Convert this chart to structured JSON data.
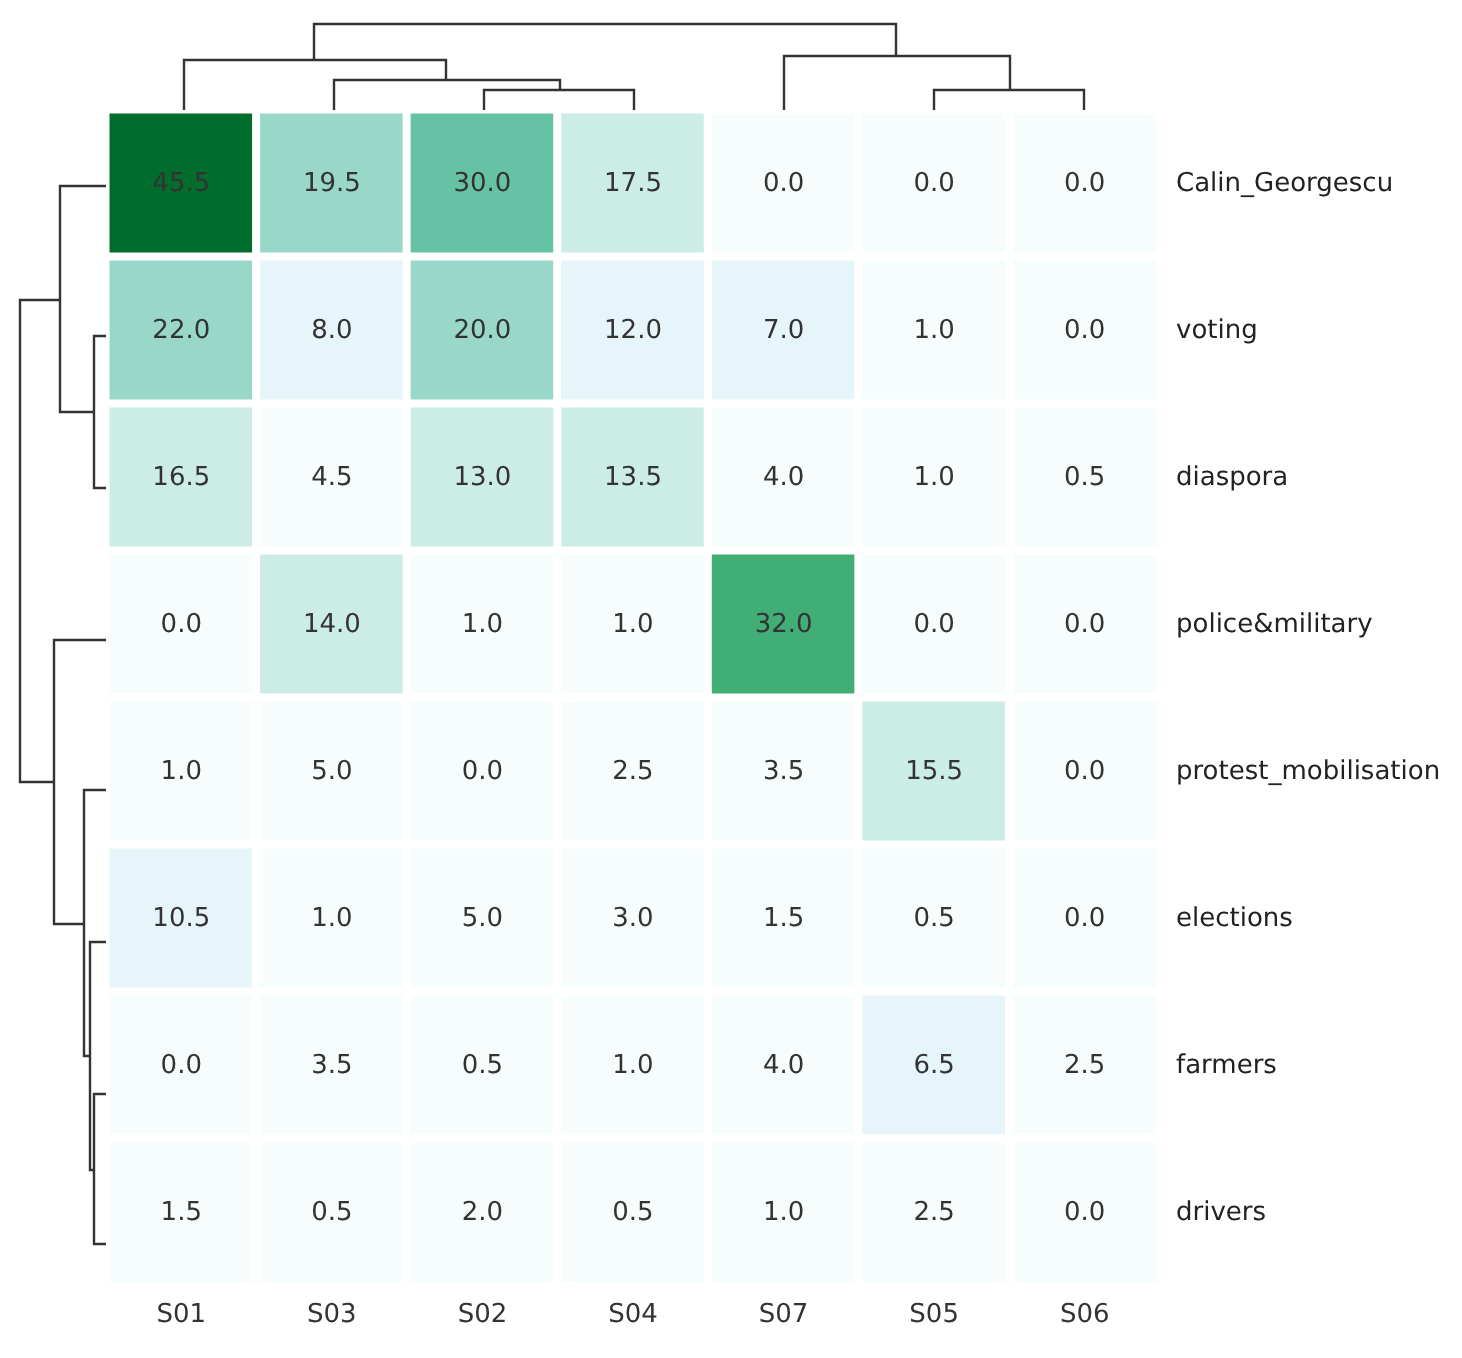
{
  "chart_data": {
    "type": "heatmap",
    "categories": [
      "S01",
      "S03",
      "S02",
      "S04",
      "S07",
      "S05",
      "S06"
    ],
    "y_categories": [
      "Calin_Georgescu",
      "voting",
      "diaspora",
      "police&military",
      "protest_mobilisation",
      "elections",
      "farmers",
      "drivers"
    ],
    "cells": [
      [
        45.5,
        19.5,
        30.0,
        17.5,
        0.0,
        0.0,
        0.0
      ],
      [
        22.0,
        8.0,
        20.0,
        12.0,
        7.0,
        1.0,
        0.0
      ],
      [
        16.5,
        4.5,
        13.0,
        13.5,
        4.0,
        1.0,
        0.5
      ],
      [
        0.0,
        14.0,
        1.0,
        1.0,
        32.0,
        0.0,
        0.0
      ],
      [
        1.0,
        5.0,
        0.0,
        2.5,
        3.5,
        15.5,
        0.0
      ],
      [
        10.5,
        1.0,
        5.0,
        3.0,
        1.5,
        0.5,
        0.0
      ],
      [
        0.0,
        3.5,
        0.5,
        1.0,
        4.0,
        6.5,
        2.5
      ],
      [
        1.5,
        0.5,
        2.0,
        0.5,
        1.0,
        2.5,
        0.0
      ]
    ],
    "cell_labels": [
      [
        "45.5",
        "19.5",
        "30.0",
        "17.5",
        "0.0",
        "0.0",
        "0.0"
      ],
      [
        "22.0",
        "8.0",
        "20.0",
        "12.0",
        "7.0",
        "1.0",
        "0.0"
      ],
      [
        "16.5",
        "4.5",
        "13.0",
        "13.5",
        "4.0",
        "1.0",
        "0.5"
      ],
      [
        "0.0",
        "14.0",
        "1.0",
        "1.0",
        "32.0",
        "0.0",
        "0.0"
      ],
      [
        "1.0",
        "5.0",
        "0.0",
        "2.5",
        "3.5",
        "15.5",
        "0.0"
      ],
      [
        "10.5",
        "1.0",
        "5.0",
        "3.0",
        "1.5",
        "0.5",
        "0.0"
      ],
      [
        "0.0",
        "3.5",
        "0.5",
        "1.0",
        "4.0",
        "6.5",
        "2.5"
      ],
      [
        "1.5",
        "0.5",
        "2.0",
        "0.5",
        "1.0",
        "2.5",
        "0.0"
      ]
    ]
  }
}
